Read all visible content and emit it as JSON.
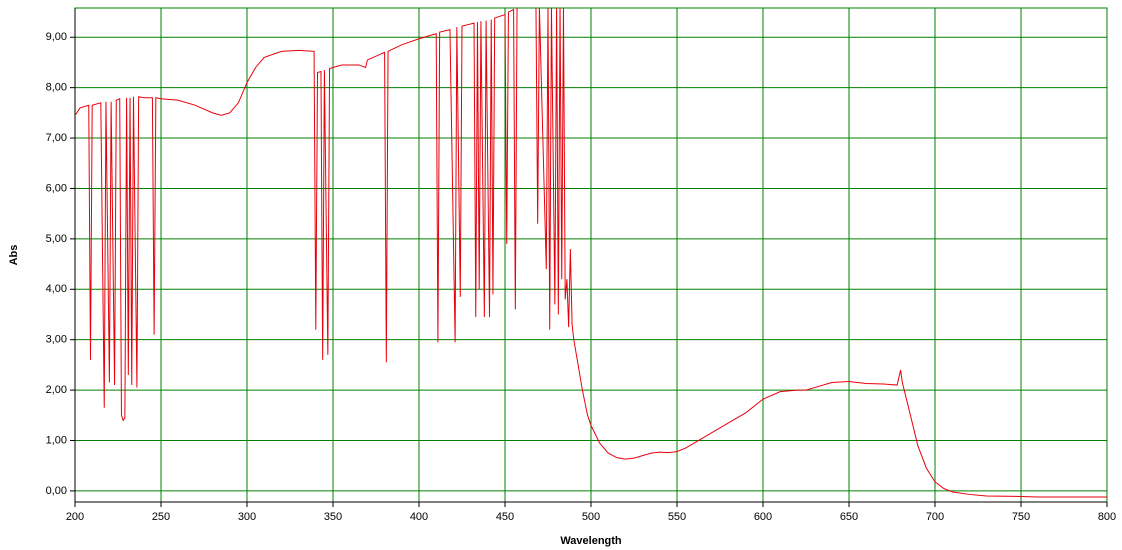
{
  "chart_data": {
    "type": "line",
    "xlabel": "Wavelength",
    "ylabel": "Abs",
    "xlim": [
      200,
      800
    ],
    "ylim": [
      -0.22,
      9.58
    ],
    "xticks": [
      200,
      250,
      300,
      350,
      400,
      450,
      500,
      550,
      600,
      650,
      700,
      750,
      800
    ],
    "yticks": [
      {
        "value": 0,
        "label": "0,00"
      },
      {
        "value": 1,
        "label": "1,00"
      },
      {
        "value": 2,
        "label": "2,00"
      },
      {
        "value": 3,
        "label": "3,00"
      },
      {
        "value": 4,
        "label": "4,00"
      },
      {
        "value": 5,
        "label": "5,00"
      },
      {
        "value": 6,
        "label": "6,00"
      },
      {
        "value": 7,
        "label": "7,00"
      },
      {
        "value": 8,
        "label": "8,00"
      },
      {
        "value": 9,
        "label": "9,00"
      }
    ],
    "grid": true,
    "grid_color": "#008000",
    "series": [
      {
        "color": "#e8000b",
        "x": [
          200,
          203,
          208,
          209,
          210,
          215,
          217,
          218,
          220,
          221,
          223,
          224,
          226,
          227,
          228,
          229,
          230,
          231,
          232,
          233,
          234,
          236,
          237,
          240,
          245,
          246,
          247,
          250,
          260,
          270,
          280,
          285,
          290,
          295,
          300,
          305,
          310,
          320,
          330,
          339,
          340,
          341,
          343,
          344,
          345,
          347,
          348,
          355,
          365,
          369,
          370,
          380,
          381,
          382,
          390,
          400,
          410,
          411,
          412,
          418,
          421,
          422,
          424,
          425,
          432,
          433,
          434,
          435,
          436,
          438,
          439,
          441,
          442,
          443,
          444,
          450,
          451,
          452,
          455,
          456,
          457,
          460,
          468,
          469,
          470,
          474,
          475,
          476,
          477,
          479,
          480,
          481,
          482,
          483,
          484,
          485,
          486,
          487,
          488,
          489,
          490,
          492,
          495,
          498,
          500,
          505,
          510,
          515,
          520,
          525,
          530,
          535,
          540,
          545,
          550,
          555,
          560,
          570,
          580,
          590,
          600,
          610,
          620,
          625,
          630,
          640,
          650,
          660,
          670,
          678,
          680,
          681,
          685,
          690,
          695,
          700,
          705,
          710,
          720,
          730,
          750,
          760,
          800
        ],
        "values": [
          7.45,
          7.6,
          7.65,
          2.6,
          7.65,
          7.7,
          1.65,
          7.72,
          2.15,
          7.72,
          2.1,
          7.75,
          7.78,
          1.5,
          1.4,
          1.45,
          7.8,
          2.3,
          7.8,
          2.1,
          7.82,
          2.05,
          7.82,
          7.8,
          7.8,
          3.1,
          7.8,
          7.78,
          7.75,
          7.65,
          7.5,
          7.45,
          7.5,
          7.7,
          8.1,
          8.4,
          8.6,
          8.72,
          8.74,
          8.72,
          3.2,
          8.3,
          8.32,
          2.6,
          8.35,
          2.7,
          8.38,
          8.45,
          8.45,
          8.4,
          8.55,
          8.7,
          2.55,
          8.72,
          8.85,
          8.97,
          9.07,
          2.95,
          9.1,
          9.15,
          2.95,
          9.2,
          3.85,
          9.22,
          9.28,
          3.45,
          9.3,
          4.0,
          9.32,
          3.45,
          9.33,
          3.45,
          9.35,
          3.9,
          9.38,
          9.45,
          4.9,
          9.5,
          9.55,
          3.6,
          9.58,
          9.6,
          9.6,
          5.3,
          9.6,
          4.4,
          9.6,
          3.2,
          9.6,
          3.7,
          9.6,
          3.5,
          9.6,
          4.2,
          9.6,
          3.8,
          4.2,
          3.25,
          4.8,
          3.3,
          3.0,
          2.6,
          2.0,
          1.5,
          1.3,
          0.95,
          0.75,
          0.66,
          0.63,
          0.65,
          0.7,
          0.75,
          0.77,
          0.76,
          0.78,
          0.85,
          0.95,
          1.15,
          1.35,
          1.55,
          1.82,
          1.97,
          2.0,
          2.0,
          2.05,
          2.15,
          2.17,
          2.13,
          2.12,
          2.1,
          2.4,
          2.15,
          1.6,
          0.9,
          0.45,
          0.18,
          0.05,
          -0.02,
          -0.07,
          -0.1,
          -0.11,
          -0.12,
          -0.12
        ]
      }
    ]
  }
}
